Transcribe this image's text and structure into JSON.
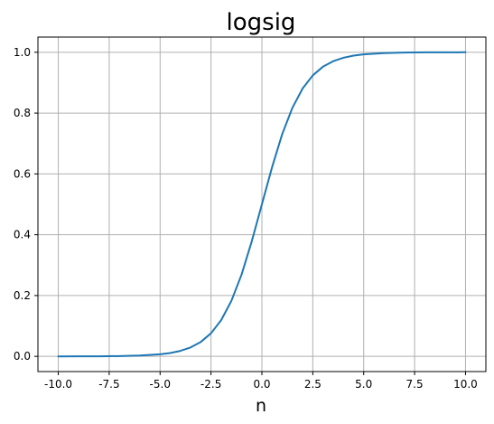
{
  "chart_data": {
    "type": "line",
    "title": "logsig",
    "xlabel": "n",
    "ylabel": "",
    "xlim": [
      -11.0,
      11.0
    ],
    "ylim": [
      -0.05,
      1.05
    ],
    "xticks": [
      "-10.0",
      "-7.5",
      "-5.0",
      "-2.5",
      "0.0",
      "2.5",
      "5.0",
      "7.5",
      "10.0"
    ],
    "xtick_values": [
      -10,
      -7.5,
      -5,
      -2.5,
      0,
      2.5,
      5,
      7.5,
      10
    ],
    "yticks": [
      "0.0",
      "0.2",
      "0.4",
      "0.6",
      "0.8",
      "1.0"
    ],
    "ytick_values": [
      0,
      0.2,
      0.4,
      0.6,
      0.8,
      1.0
    ],
    "grid": true,
    "legend": "none",
    "series": [
      {
        "color": "#1f77b4",
        "x": [
          -10,
          -9,
          -8,
          -7,
          -6,
          -5,
          -4.5,
          -4,
          -3.5,
          -3,
          -2.5,
          -2,
          -1.5,
          -1,
          -0.5,
          0,
          0.5,
          1,
          1.5,
          2,
          2.5,
          3,
          3.5,
          4,
          4.5,
          5,
          6,
          7,
          8,
          9,
          10
        ],
        "y": [
          0.0,
          0.0001,
          0.0003,
          0.0009,
          0.0025,
          0.0067,
          0.011,
          0.018,
          0.0293,
          0.0474,
          0.0759,
          0.1192,
          0.1824,
          0.2689,
          0.3775,
          0.5,
          0.6225,
          0.7311,
          0.8176,
          0.8808,
          0.9241,
          0.9526,
          0.9707,
          0.982,
          0.989,
          0.9933,
          0.9975,
          0.9991,
          0.9997,
          0.9999,
          1.0
        ]
      }
    ]
  }
}
